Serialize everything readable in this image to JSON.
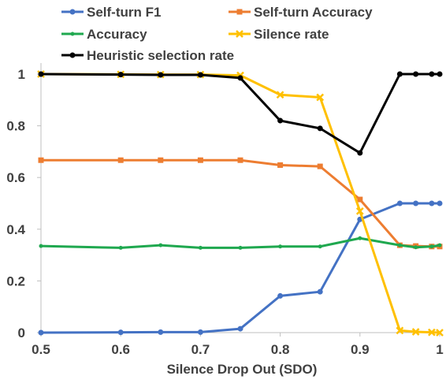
{
  "chart_data": {
    "type": "line",
    "title": "",
    "xlabel": "Silence Drop Out (SDO)",
    "ylabel": "",
    "xlim": [
      0.5,
      1.0
    ],
    "ylim": [
      0,
      1.0
    ],
    "x_ticks": [
      "0.5",
      "0.6",
      "0.7",
      "0.8",
      "0.9",
      "1"
    ],
    "x_tick_values": [
      0.5,
      0.6,
      0.7,
      0.8,
      0.9,
      1.0
    ],
    "y_ticks": [
      "0",
      "0.2",
      "0.4",
      "0.6",
      "0.8",
      "1"
    ],
    "y_tick_values": [
      0,
      0.2,
      0.4,
      0.6,
      0.8,
      1.0
    ],
    "grid": false,
    "legend_position": "top",
    "x": [
      0.5,
      0.6,
      0.65,
      0.7,
      0.75,
      0.8,
      0.85,
      0.9,
      0.95,
      0.97,
      0.99,
      1.0
    ],
    "series": [
      {
        "name": "Self-turn F1",
        "color": "#4472c4",
        "marker": "circle",
        "values": [
          0.0,
          0.001,
          0.002,
          0.002,
          0.015,
          0.142,
          0.158,
          0.438,
          0.5,
          0.5,
          0.5,
          0.5
        ]
      },
      {
        "name": "Self-turn Accuracy",
        "color": "#ed7d31",
        "marker": "square",
        "values": [
          0.667,
          0.667,
          0.667,
          0.667,
          0.667,
          0.648,
          0.643,
          0.515,
          0.338,
          0.335,
          0.333,
          0.333
        ]
      },
      {
        "name": "Accuracy",
        "color": "#1fa84f",
        "marker": "circle-small",
        "values": [
          0.335,
          0.328,
          0.338,
          0.328,
          0.328,
          0.333,
          0.333,
          0.365,
          0.338,
          0.33,
          0.333,
          0.338
        ]
      },
      {
        "name": "Silence rate",
        "color": "#ffc000",
        "marker": "x",
        "values": [
          1.0,
          0.999,
          0.998,
          0.998,
          0.995,
          0.92,
          0.91,
          0.47,
          0.008,
          0.003,
          0.001,
          0.0
        ]
      },
      {
        "name": "Heuristic selection rate",
        "color": "#000000",
        "marker": "circle",
        "values": [
          1.0,
          0.998,
          0.997,
          0.997,
          0.985,
          0.82,
          0.79,
          0.695,
          1.0,
          1.0,
          1.0,
          1.0
        ]
      }
    ]
  }
}
